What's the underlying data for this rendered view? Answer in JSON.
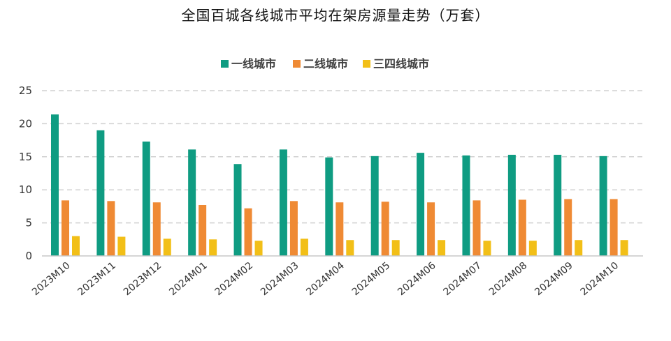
{
  "chart_data": {
    "type": "bar",
    "title": "全国百城各线城市平均在架房源量走势（万套）",
    "categories": [
      "2023M10",
      "2023M11",
      "2023M12",
      "2024M01",
      "2024M02",
      "2024M03",
      "2024M04",
      "2024M05",
      "2024M06",
      "2024M07",
      "2024M08",
      "2024M09",
      "2024M10"
    ],
    "series": [
      {
        "name": "一线城市",
        "color": "#0f9c82",
        "values": [
          21.4,
          19.0,
          17.3,
          16.1,
          13.9,
          16.1,
          14.9,
          15.1,
          15.6,
          15.2,
          15.3,
          15.3,
          15.1
        ]
      },
      {
        "name": "二线城市",
        "color": "#ef8a34",
        "values": [
          8.4,
          8.3,
          8.1,
          7.7,
          7.2,
          8.3,
          8.1,
          8.2,
          8.1,
          8.4,
          8.5,
          8.6,
          8.6
        ]
      },
      {
        "name": "三四线城市",
        "color": "#f2bf17",
        "values": [
          3.0,
          2.9,
          2.6,
          2.5,
          2.3,
          2.6,
          2.4,
          2.4,
          2.4,
          2.3,
          2.3,
          2.4,
          2.4
        ]
      }
    ],
    "ylim": [
      0,
      25
    ],
    "yticks": [
      0,
      5,
      10,
      15,
      20,
      25
    ],
    "grid": true,
    "legend_position": "top-center"
  }
}
